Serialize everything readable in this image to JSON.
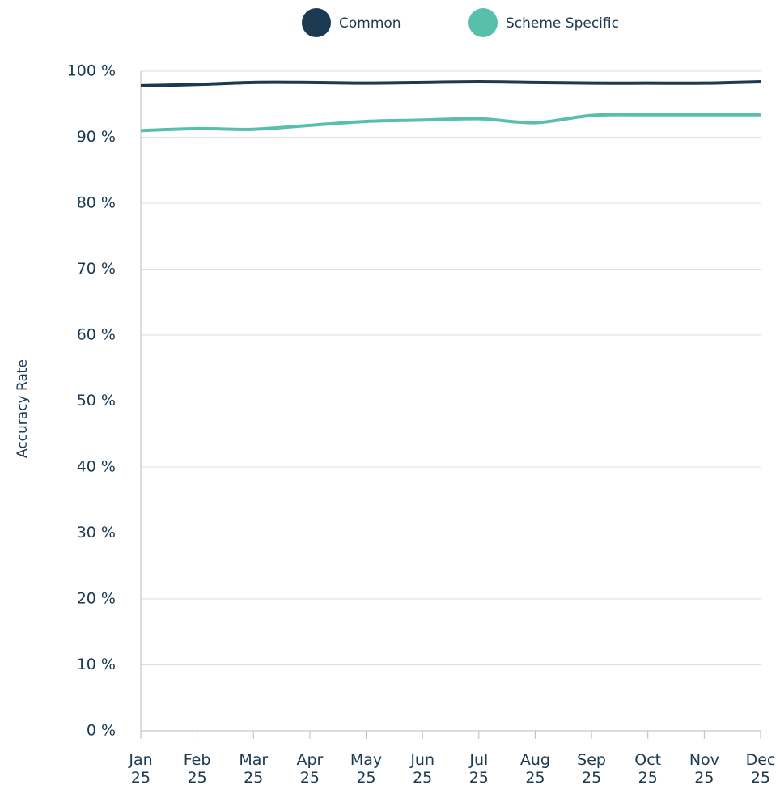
{
  "chart_data": {
    "type": "line",
    "y_label": "Accuracy Rate",
    "categories": [
      "Jan 25",
      "Feb 25",
      "Mar 25",
      "Apr 25",
      "May 25",
      "Jun 25",
      "Jul 25",
      "Aug 25",
      "Sep 25",
      "Oct 25",
      "Nov 25",
      "Dec 25"
    ],
    "series": [
      {
        "name": "Common",
        "color": "#1b3a52",
        "values": [
          97.8,
          98.0,
          98.3,
          98.3,
          98.2,
          98.3,
          98.4,
          98.3,
          98.2,
          98.2,
          98.2,
          98.4
        ]
      },
      {
        "name": "Scheme Specific",
        "color": "#58bfaa",
        "values": [
          91.0,
          91.3,
          91.2,
          91.8,
          92.4,
          92.6,
          92.8,
          92.2,
          93.3,
          93.4,
          93.4,
          93.4
        ]
      }
    ],
    "ylim": [
      0,
      100
    ],
    "yticks": [
      {
        "value": 0,
        "label": "0 %"
      },
      {
        "value": 10,
        "label": "10 %"
      },
      {
        "value": 20,
        "label": "20 %"
      },
      {
        "value": 30,
        "label": "30 %"
      },
      {
        "value": 40,
        "label": "40 %"
      },
      {
        "value": 50,
        "label": "50 %"
      },
      {
        "value": 60,
        "label": "60 %"
      },
      {
        "value": 70,
        "label": "70 %"
      },
      {
        "value": 80,
        "label": "80 %"
      },
      {
        "value": 90,
        "label": "90 %"
      },
      {
        "value": 100,
        "label": "100 %"
      }
    ],
    "grid": true,
    "legend": "top"
  }
}
